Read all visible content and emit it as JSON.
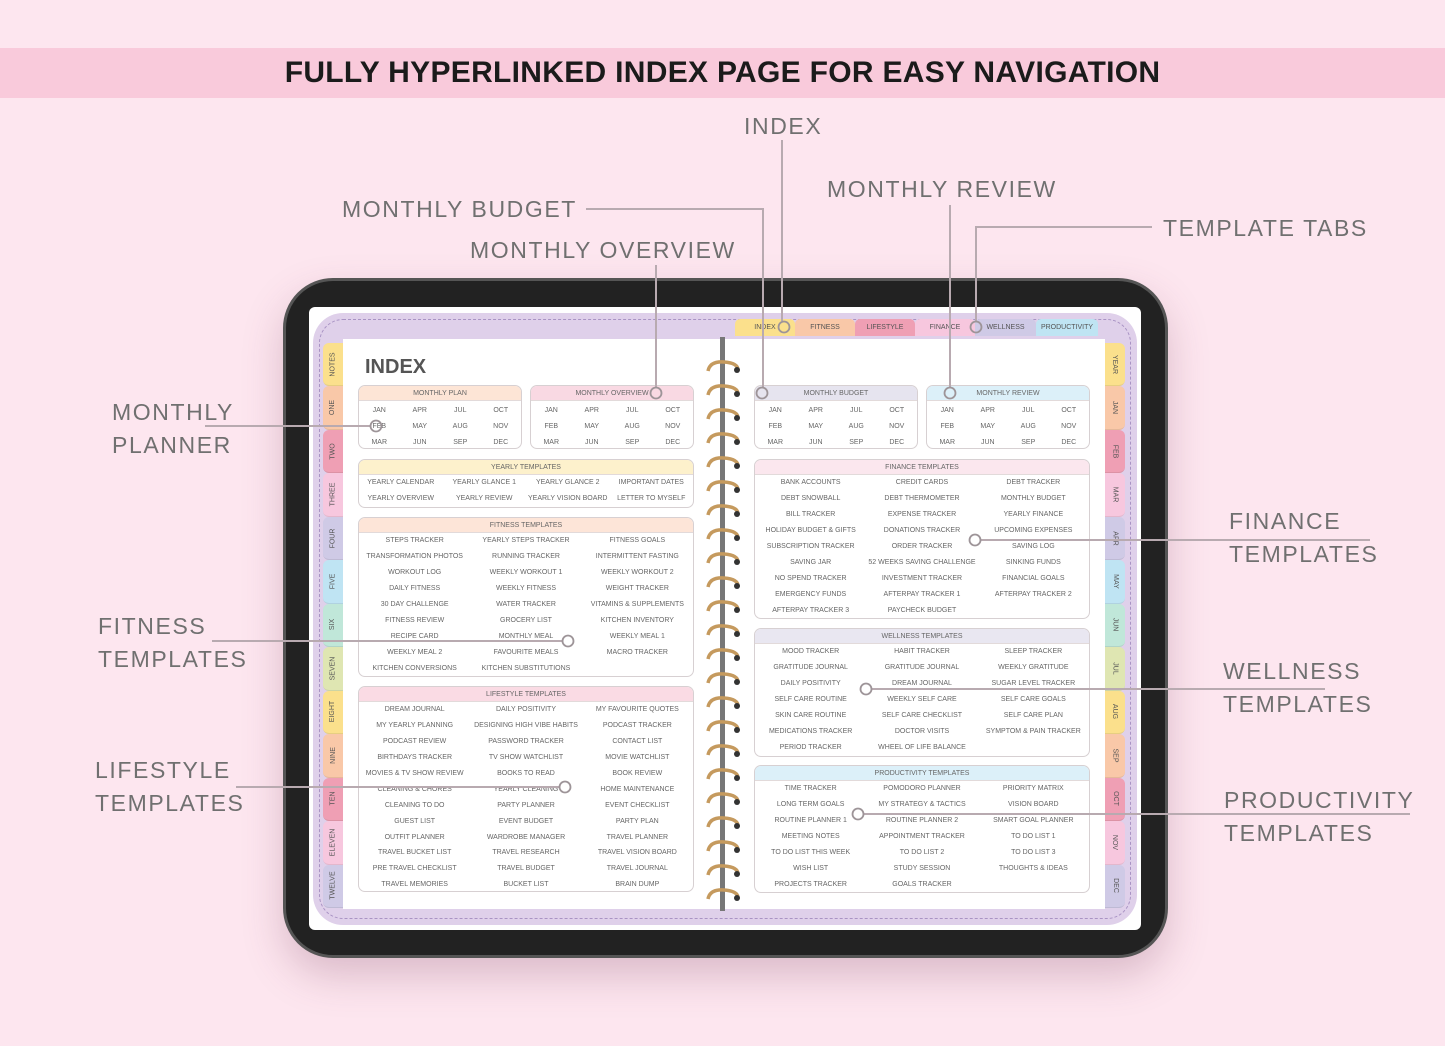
{
  "banner": {
    "title": "FULLY HYPERLINKED INDEX PAGE FOR EASY NAVIGATION"
  },
  "callouts": {
    "index": "INDEX",
    "monthly_budget": "MONTHLY BUDGET",
    "monthly_overview": "MONTHLY OVERVIEW",
    "monthly_review": "MONTHLY REVIEW",
    "template_tabs": "TEMPLATE TABS",
    "monthly_planner": [
      "MONTHLY",
      "PLANNER"
    ],
    "fitness_templates": [
      "FITNESS",
      "TEMPLATES"
    ],
    "lifestyle_templates": [
      "LIFESTYLE",
      "TEMPLATES"
    ],
    "finance_templates": [
      "FINANCE",
      "TEMPLATES"
    ],
    "wellness_templates": [
      "WELLNESS",
      "TEMPLATES"
    ],
    "productivity_templates": [
      "PRODUCTIVITY",
      "TEMPLATES"
    ]
  },
  "colors": {
    "background": "#fde6ef",
    "banner": "#f9cadb",
    "yellow": "#fbe08c",
    "peach": "#f9c8a8",
    "pink": "#ef9fb4",
    "light_pink": "#f7c7de",
    "lavender": "#cfcae6",
    "blue": "#bfe4f3",
    "mint": "#c0e7d9",
    "lime": "#dfe6b2"
  },
  "top_tabs": [
    {
      "label": "INDEX",
      "color": "#fbe08c"
    },
    {
      "label": "FITNESS",
      "color": "#f9c8a8"
    },
    {
      "label": "LIFESTYLE",
      "color": "#ef9fb4"
    },
    {
      "label": "FINANCE",
      "color": "#f7c7de"
    },
    {
      "label": "WELLNESS",
      "color": "#cfcae6"
    },
    {
      "label": "PRODUCTIVITY",
      "color": "#bfe4f3"
    }
  ],
  "left_tabs": [
    {
      "label": "NOTES",
      "color": "#fbe08c"
    },
    {
      "label": "ONE",
      "color": "#f9c8a8"
    },
    {
      "label": "TWO",
      "color": "#ef9fb4"
    },
    {
      "label": "THREE",
      "color": "#f7c7de"
    },
    {
      "label": "FOUR",
      "color": "#cfcae6"
    },
    {
      "label": "FIVE",
      "color": "#bfe4f3"
    },
    {
      "label": "SIX",
      "color": "#c0e7d9"
    },
    {
      "label": "SEVEN",
      "color": "#dfe6b2"
    },
    {
      "label": "EIGHT",
      "color": "#fbe08c"
    },
    {
      "label": "NINE",
      "color": "#f9c8a8"
    },
    {
      "label": "TEN",
      "color": "#ef9fb4"
    },
    {
      "label": "ELEVEN",
      "color": "#f7c7de"
    },
    {
      "label": "TWELVE",
      "color": "#cfcae6"
    }
  ],
  "right_tabs": [
    {
      "label": "YEAR",
      "color": "#fbe08c"
    },
    {
      "label": "JAN",
      "color": "#f9c8a8"
    },
    {
      "label": "FEB",
      "color": "#ef9fb4"
    },
    {
      "label": "MAR",
      "color": "#f7c7de"
    },
    {
      "label": "APR",
      "color": "#cfcae6"
    },
    {
      "label": "MAY",
      "color": "#bfe4f3"
    },
    {
      "label": "JUN",
      "color": "#c0e7d9"
    },
    {
      "label": "JUL",
      "color": "#dfe6b2"
    },
    {
      "label": "AUG",
      "color": "#fbe08c"
    },
    {
      "label": "SEP",
      "color": "#f9c8a8"
    },
    {
      "label": "OCT",
      "color": "#ef9fb4"
    },
    {
      "label": "NOV",
      "color": "#f7c7de"
    },
    {
      "label": "DEC",
      "color": "#cfcae6"
    }
  ],
  "index_title": "INDEX",
  "months": [
    "JAN",
    "FEB",
    "MAR",
    "APR",
    "MAY",
    "JUN",
    "JUL",
    "AUG",
    "SEP",
    "OCT",
    "NOV",
    "DEC"
  ],
  "sections": {
    "monthly_plan": {
      "title": "MONTHLY PLAN",
      "color": "#fde5d6"
    },
    "monthly_overview": {
      "title": "MONTHLY OVERVIEW",
      "color": "#f9d9e3"
    },
    "monthly_budget": {
      "title": "MONTHLY BUDGET",
      "color": "#e6e4ef"
    },
    "monthly_review": {
      "title": "MONTHLY REVIEW",
      "color": "#dcf0f9"
    },
    "yearly": {
      "title": "YEARLY TEMPLATES",
      "color": "#fdf1cc",
      "items": [
        "YEARLY CALENDAR",
        "YEARLY GLANCE 1",
        "YEARLY GLANCE 2",
        "IMPORTANT DATES",
        "YEARLY OVERVIEW",
        "YEARLY REVIEW",
        "YEARLY VISION BOARD",
        "LETTER TO MYSELF"
      ]
    },
    "fitness": {
      "title": "FITNESS TEMPLATES",
      "color": "#fde5d8",
      "items": [
        "STEPS TRACKER",
        "YEARLY STEPS TRACKER",
        "FITNESS GOALS",
        "TRANSFORMATION PHOTOS",
        "RUNNING TRACKER",
        "INTERMITTENT FASTING",
        "WORKOUT LOG",
        "WEEKLY WORKOUT 1",
        "WEEKLY WORKOUT 2",
        "DAILY FITNESS",
        "WEEKLY FITNESS",
        "WEIGHT TRACKER",
        "30 DAY CHALLENGE",
        "WATER TRACKER",
        "VITAMINS & SUPPLEMENTS",
        "FITNESS REVIEW",
        "GROCERY LIST",
        "KITCHEN INVENTORY",
        "RECIPE CARD",
        "MONTHLY MEAL",
        "WEEKLY MEAL 1",
        "WEEKLY MEAL 2",
        "FAVOURITE MEALS",
        "MACRO TRACKER",
        "KITCHEN CONVERSIONS",
        "KITCHEN SUBSTITUTIONS"
      ]
    },
    "lifestyle": {
      "title": "LIFESTYLE TEMPLATES",
      "color": "#fadbe4",
      "items": [
        "DREAM JOURNAL",
        "DAILY POSITIVITY",
        "MY FAVOURITE QUOTES",
        "MY YEARLY PLANNING",
        "DESIGNING HIGH VIBE HABITS",
        "PODCAST TRACKER",
        "PODCAST REVIEW",
        "PASSWORD TRACKER",
        "CONTACT LIST",
        "BIRTHDAYS TRACKER",
        "TV SHOW WATCHLIST",
        "MOVIE WATCHLIST",
        "MOVIES & TV SHOW REVIEW",
        "BOOKS TO READ",
        "BOOK REVIEW",
        "CLEANING & CHORES",
        "YEARLY CLEANING",
        "HOME MAINTENANCE",
        "CLEANING TO DO",
        "PARTY PLANNER",
        "EVENT CHECKLIST",
        "GUEST LIST",
        "EVENT BUDGET",
        "PARTY PLAN",
        "OUTFIT PLANNER",
        "WARDROBE MANAGER",
        "TRAVEL PLANNER",
        "TRAVEL BUCKET LIST",
        "TRAVEL RESEARCH",
        "TRAVEL VISION BOARD",
        "PRE TRAVEL CHECKLIST",
        "TRAVEL BUDGET",
        "TRAVEL JOURNAL",
        "TRAVEL MEMORIES",
        "BUCKET LIST",
        "BRAIN DUMP"
      ]
    },
    "finance": {
      "title": "FINANCE TEMPLATES",
      "color": "#fbe7ee",
      "items": [
        "BANK ACCOUNTS",
        "CREDIT CARDS",
        "DEBT TRACKER",
        "DEBT SNOWBALL",
        "DEBT THERMOMETER",
        "MONTHLY BUDGET",
        "BILL TRACKER",
        "EXPENSE TRACKER",
        "YEARLY FINANCE",
        "HOLIDAY BUDGET & GIFTS",
        "DONATIONS TRACKER",
        "UPCOMING EXPENSES",
        "SUBSCRIPTION TRACKER",
        "ORDER TRACKER",
        "SAVING LOG",
        "SAVING JAR",
        "52 WEEKS SAVING CHALLENGE",
        "SINKING FUNDS",
        "NO SPEND TRACKER",
        "INVESTMENT TRACKER",
        "FINANCIAL GOALS",
        "EMERGENCY FUNDS",
        "AFTERPAY TRACKER 1",
        "AFTERPAY TRACKER 2",
        "AFTERPAY TRACKER 3",
        "PAYCHECK BUDGET"
      ]
    },
    "wellness": {
      "title": "WELLNESS TEMPLATES",
      "color": "#e9e7f1",
      "items": [
        "MOOD TRACKER",
        "HABIT TRACKER",
        "SLEEP TRACKER",
        "GRATITUDE JOURNAL",
        "GRATITUDE JOURNAL",
        "WEEKLY GRATITUDE",
        "DAILY POSITIVITY",
        "DREAM JOURNAL",
        "SUGAR LEVEL TRACKER",
        "SELF CARE ROUTINE",
        "WEEKLY SELF CARE",
        "SELF CARE GOALS",
        "SKIN CARE ROUTINE",
        "SELF CARE CHECKLIST",
        "SELF CARE PLAN",
        "MEDICATIONS TRACKER",
        "DOCTOR VISITS",
        "SYMPTOM & PAIN TRACKER",
        "PERIOD TRACKER",
        "WHEEL OF LIFE BALANCE"
      ]
    },
    "productivity": {
      "title": "PRODUCTIVITY TEMPLATES",
      "color": "#dcf0f9",
      "items": [
        "TIME TRACKER",
        "POMODORO PLANNER",
        "PRIORITY MATRIX",
        "LONG TERM GOALS",
        "MY STRATEGY & TACTICS",
        "VISION BOARD",
        "ROUTINE PLANNER 1",
        "ROUTINE PLANNER 2",
        "SMART GOAL PLANNER",
        "MEETING NOTES",
        "APPOINTMENT TRACKER",
        "TO DO LIST 1",
        "TO DO LIST THIS WEEK",
        "TO DO LIST 2",
        "TO DO LIST 3",
        "WISH LIST",
        "STUDY SESSION",
        "THOUGHTS & IDEAS",
        "PROJECTS TRACKER",
        "GOALS TRACKER"
      ]
    }
  }
}
